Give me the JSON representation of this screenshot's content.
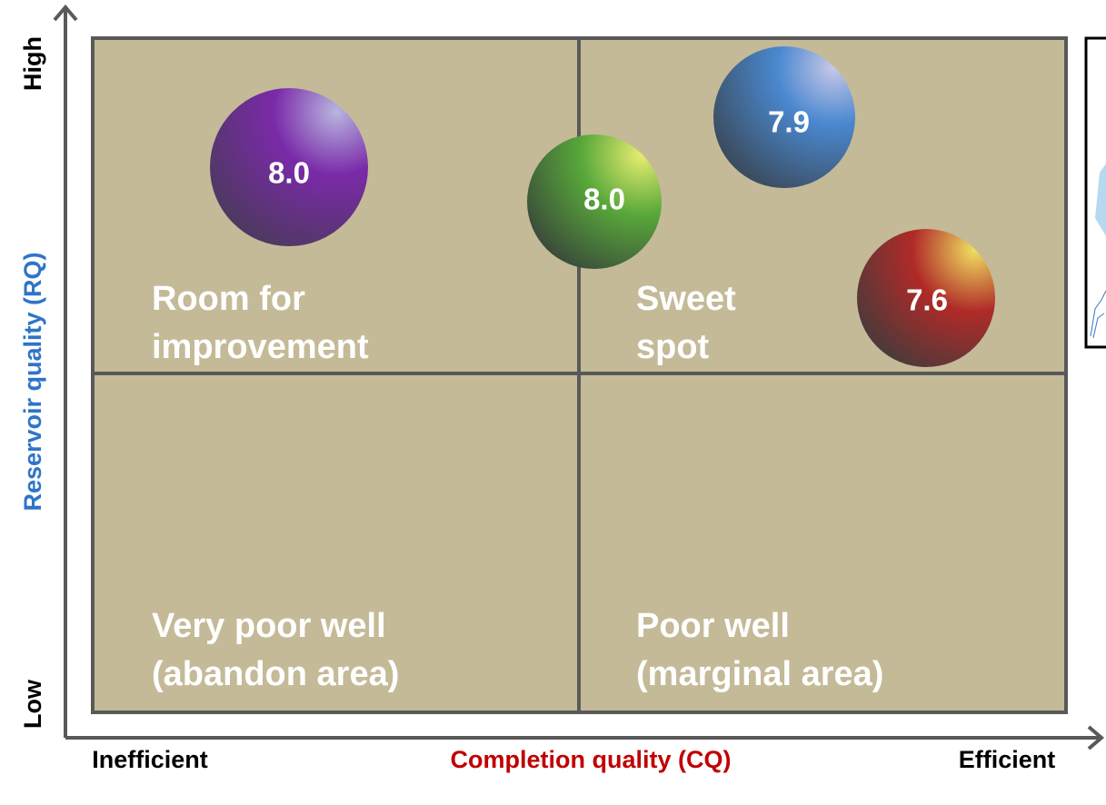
{
  "axes": {
    "y_title": "Reservoir quality (RQ)",
    "y_high": "High",
    "y_low": "Low",
    "x_title": "Completion quality (CQ)",
    "x_low": "Inefficient",
    "x_high": "Efficient"
  },
  "quadrants": [
    {
      "lines": [
        "Room for",
        "improvement"
      ]
    },
    {
      "lines": [
        "Sweet",
        "spot"
      ]
    },
    {
      "lines": [
        "Very poor well",
        "(abandon area)"
      ]
    },
    {
      "lines": [
        "Poor well",
        "(marginal area)"
      ]
    }
  ],
  "bubbles": [
    {
      "label": "8.0"
    },
    {
      "label": "8.0"
    },
    {
      "label": "7.9"
    },
    {
      "label": "7.6"
    }
  ]
}
